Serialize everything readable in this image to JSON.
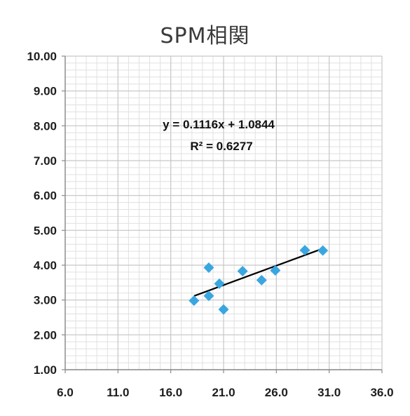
{
  "chart_data": {
    "type": "scatter",
    "title": "SPM相関",
    "xlabel": "",
    "ylabel": "",
    "xlim": [
      6.0,
      36.0
    ],
    "ylim": [
      1.0,
      10.0
    ],
    "x_ticks": [
      "6.0",
      "11.0",
      "16.0",
      "21.0",
      "26.0",
      "31.0",
      "36.0"
    ],
    "y_ticks": [
      "1.00",
      "2.00",
      "3.00",
      "4.00",
      "5.00",
      "6.00",
      "7.00",
      "8.00",
      "9.00",
      "10.00"
    ],
    "grid": true,
    "points": [
      {
        "x": 18.2,
        "y": 2.98
      },
      {
        "x": 19.6,
        "y": 3.12
      },
      {
        "x": 19.6,
        "y": 3.93
      },
      {
        "x": 20.6,
        "y": 3.47
      },
      {
        "x": 21.0,
        "y": 2.73
      },
      {
        "x": 22.8,
        "y": 3.83
      },
      {
        "x": 24.6,
        "y": 3.57
      },
      {
        "x": 25.9,
        "y": 3.85
      },
      {
        "x": 28.7,
        "y": 4.43
      },
      {
        "x": 30.4,
        "y": 4.42
      }
    ],
    "trendline": {
      "slope": 0.1116,
      "intercept": 1.0844,
      "x_range": [
        18.2,
        30.4
      ],
      "equation": "y = 0.1116x + 1.0844",
      "r_squared": "R² = 0.6277"
    },
    "colors": {
      "points": "#3aa6e0",
      "trendline": "#000000",
      "grid": "#c8c8c8",
      "axis": "#8a8a8a"
    }
  }
}
